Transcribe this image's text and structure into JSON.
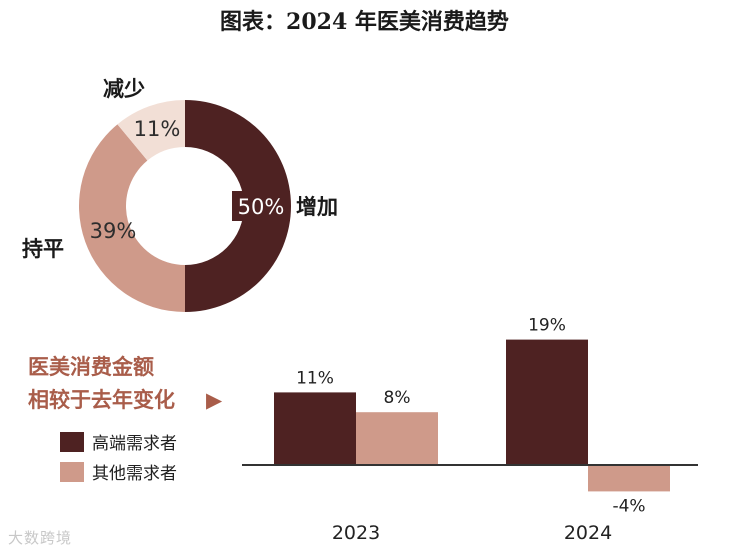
{
  "title": "图表：2024 年医美消费趋势",
  "watermark": "大数跨境",
  "colors": {
    "high": "#4e2222",
    "other": "#cf9a8a",
    "light": "#f2dfd6",
    "caption": "#a95d4a",
    "axis": "#333333"
  },
  "chart_data": [
    {
      "type": "pie",
      "variant": "donut",
      "slices": [
        {
          "label": "增加",
          "value": 50,
          "value_label": "50%"
        },
        {
          "label": "持平",
          "value": 39,
          "value_label": "39%"
        },
        {
          "label": "减少",
          "value": 11,
          "value_label": "11%"
        }
      ]
    },
    {
      "type": "bar",
      "caption_lines": [
        "医美消费金额",
        "相较于去年变化"
      ],
      "caption_arrow": "▶",
      "categories": [
        "2023",
        "2024"
      ],
      "series": [
        {
          "name": "高端需求者",
          "values": [
            11,
            19
          ],
          "labels": [
            "11%",
            "19%"
          ]
        },
        {
          "name": "其他需求者",
          "values": [
            8,
            -4
          ],
          "labels": [
            "8%",
            "-4%"
          ]
        }
      ],
      "ylabel": "",
      "ylim": [
        -4,
        19
      ]
    }
  ]
}
